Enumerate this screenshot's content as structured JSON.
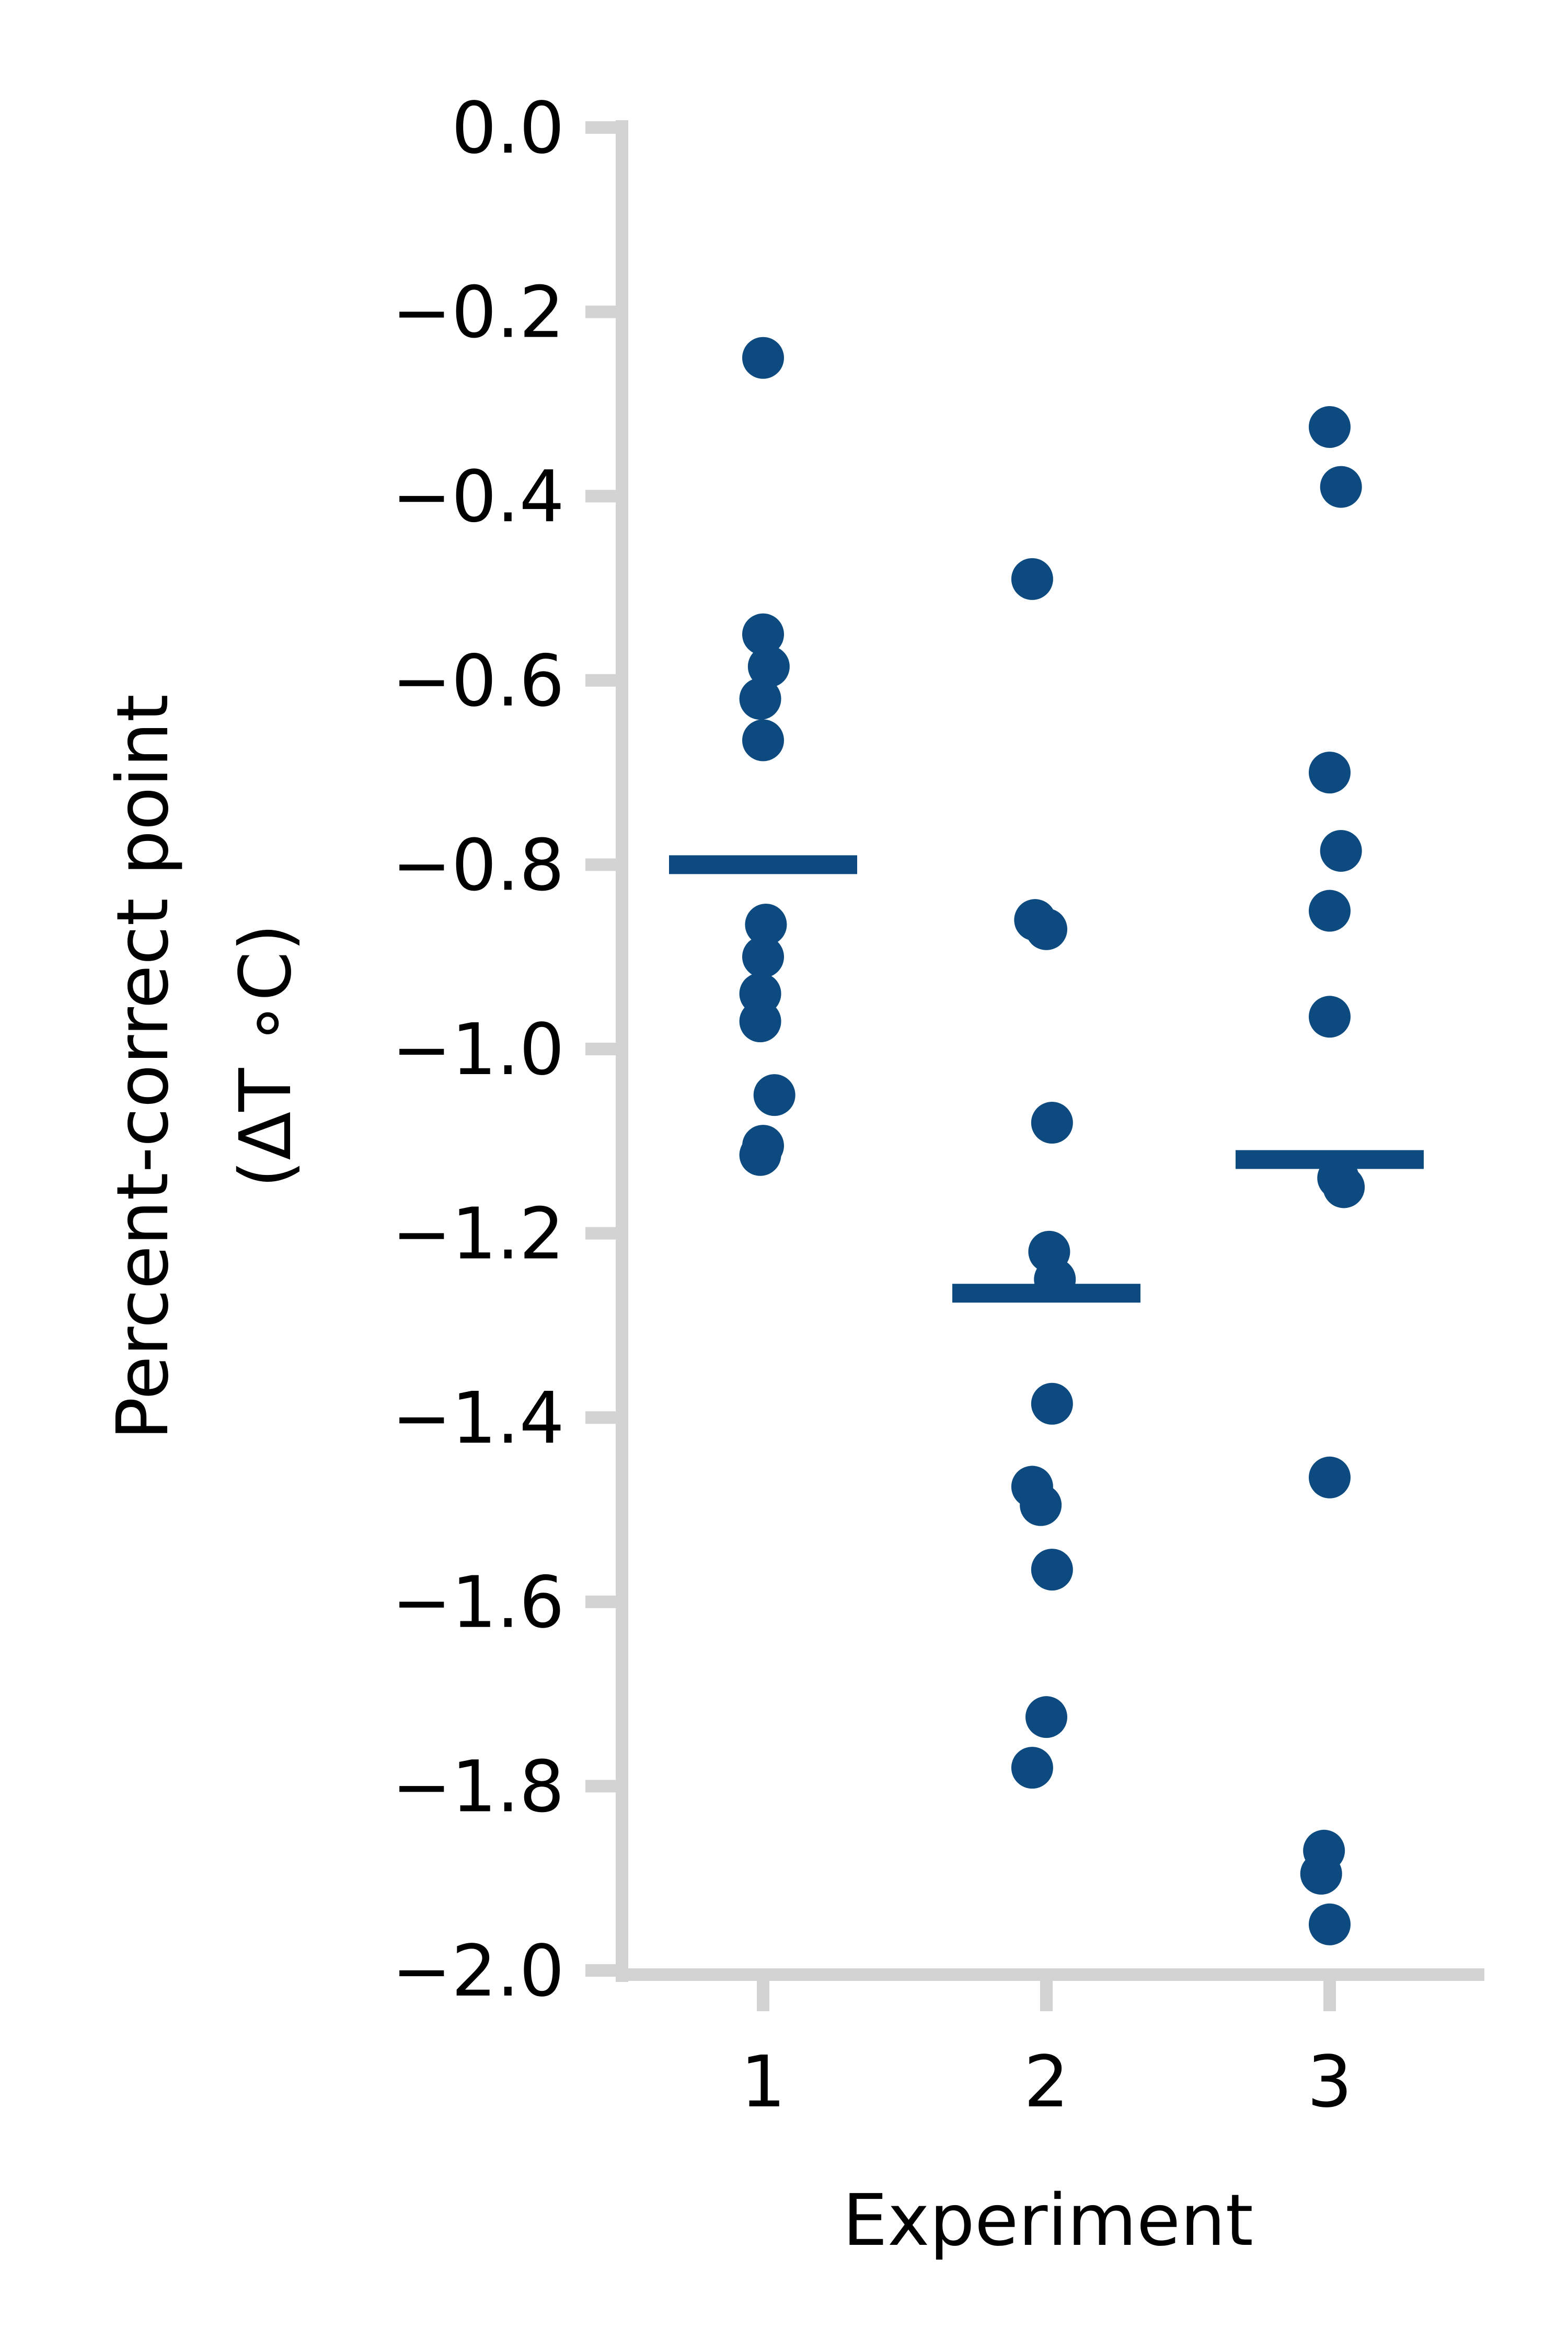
{
  "chart_data": {
    "type": "scatter",
    "title": "",
    "xlabel": "Experiment",
    "ylabel_lines": [
      "Percent-correct point",
      "(ΔT ∘C)"
    ],
    "categories": [
      "1",
      "2",
      "3"
    ],
    "yticks": [
      "0.0",
      "−0.2",
      "−0.4",
      "−0.6",
      "−0.8",
      "−1.0",
      "−1.2",
      "−1.4",
      "−1.6",
      "−1.8",
      "−2.0"
    ],
    "ytick_values": [
      0.0,
      -0.2,
      -0.4,
      -0.6,
      -0.8,
      -1.0,
      -1.2,
      -1.4,
      -1.6,
      -1.8,
      -2.0
    ],
    "ylim": [
      -2.0,
      0.0
    ],
    "grid": false,
    "legend": "none",
    "colors": {
      "points": "#0d4a80",
      "axis": "#d3d3d3",
      "text": "#000000"
    },
    "series": [
      {
        "category": "1",
        "mean": -0.8,
        "points": [
          {
            "x": 1.0,
            "y": -0.25
          },
          {
            "x": 1.0,
            "y": -0.55
          },
          {
            "x": 1.02,
            "y": -0.585
          },
          {
            "x": 0.99,
            "y": -0.62
          },
          {
            "x": 1.0,
            "y": -0.665
          },
          {
            "x": 1.01,
            "y": -0.865
          },
          {
            "x": 1.0,
            "y": -0.9
          },
          {
            "x": 0.99,
            "y": -0.94
          },
          {
            "x": 0.99,
            "y": -0.97
          },
          {
            "x": 1.04,
            "y": -1.05
          },
          {
            "x": 1.0,
            "y": -1.105
          },
          {
            "x": 0.99,
            "y": -1.115
          }
        ]
      },
      {
        "category": "2",
        "mean": -1.265,
        "points": [
          {
            "x": 1.95,
            "y": -0.49
          },
          {
            "x": 1.96,
            "y": -0.86
          },
          {
            "x": 2.0,
            "y": -0.87
          },
          {
            "x": 2.02,
            "y": -1.08
          },
          {
            "x": 2.01,
            "y": -1.22
          },
          {
            "x": 2.03,
            "y": -1.25
          },
          {
            "x": 2.02,
            "y": -1.385
          },
          {
            "x": 1.95,
            "y": -1.475
          },
          {
            "x": 1.98,
            "y": -1.495
          },
          {
            "x": 2.02,
            "y": -1.565
          },
          {
            "x": 2.0,
            "y": -1.725
          },
          {
            "x": 1.95,
            "y": -1.78
          }
        ]
      },
      {
        "category": "3",
        "mean": -1.12,
        "points": [
          {
            "x": 3.0,
            "y": -0.325
          },
          {
            "x": 3.04,
            "y": -0.39
          },
          {
            "x": 3.0,
            "y": -0.7
          },
          {
            "x": 3.04,
            "y": -0.785
          },
          {
            "x": 3.0,
            "y": -0.85
          },
          {
            "x": 3.0,
            "y": -0.965
          },
          {
            "x": 3.03,
            "y": -1.14
          },
          {
            "x": 3.05,
            "y": -1.15
          },
          {
            "x": 3.0,
            "y": -1.465
          },
          {
            "x": 2.98,
            "y": -1.87
          },
          {
            "x": 2.97,
            "y": -1.895
          },
          {
            "x": 3.0,
            "y": -1.95
          }
        ]
      }
    ]
  }
}
